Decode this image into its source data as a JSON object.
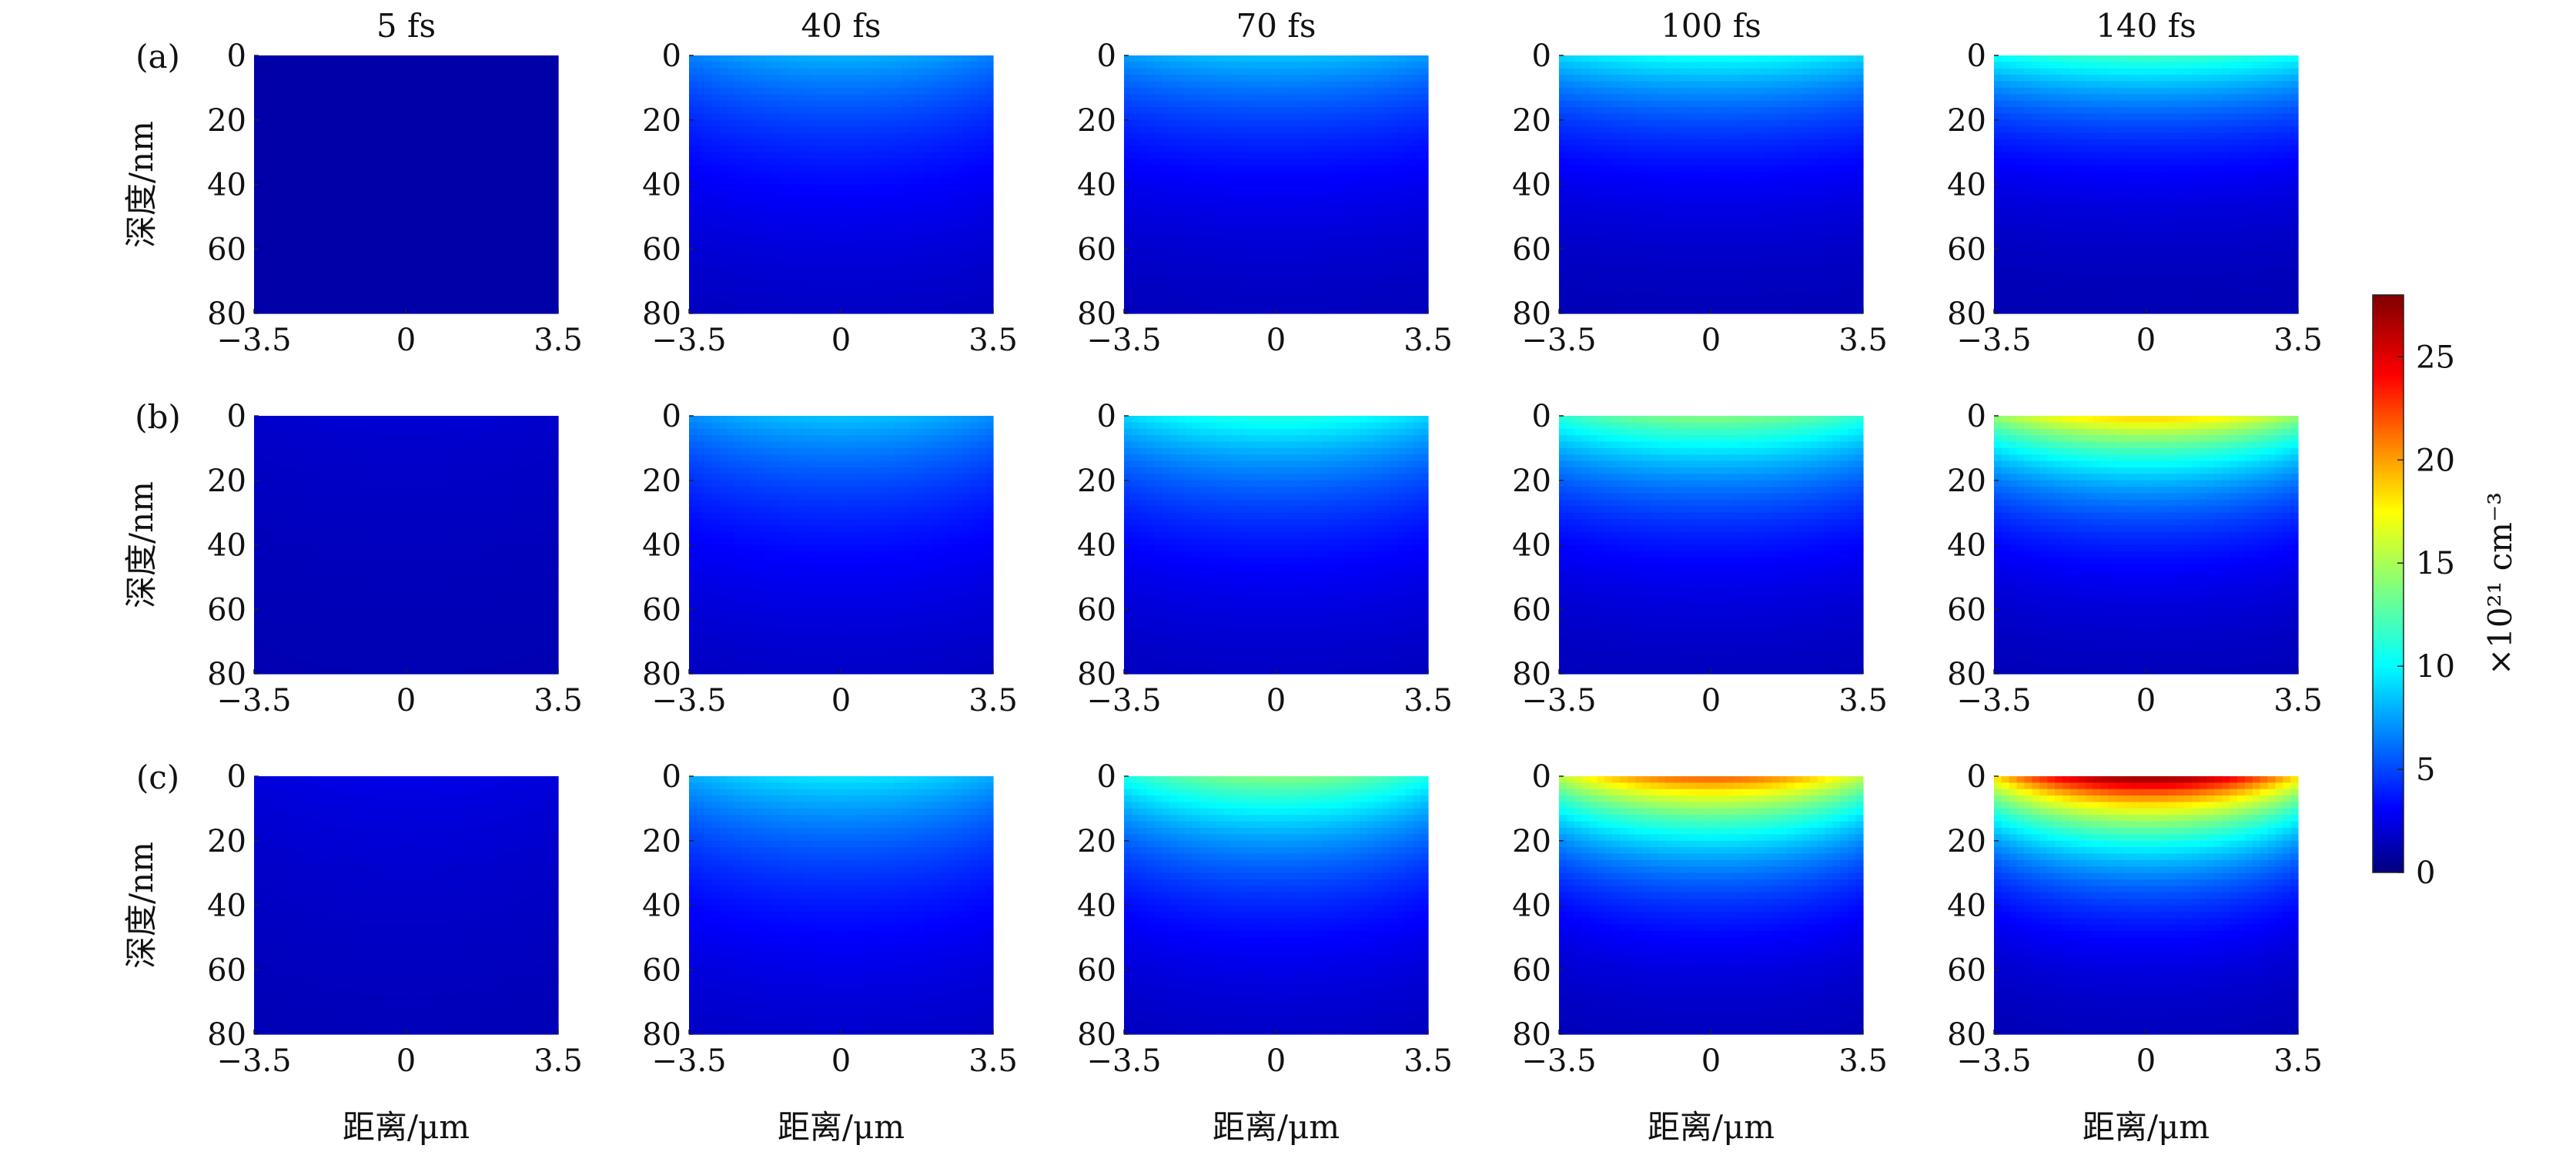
{
  "chart_data": {
    "type": "heatmap",
    "colormap": "jet",
    "col_titles": [
      "5 fs",
      "40 fs",
      "70 fs",
      "100 fs",
      "140 fs"
    ],
    "row_labels": [
      "(a)",
      "(b)",
      "(c)"
    ],
    "xlabel": "距离/μm",
    "ylabel": "深度/nm",
    "x_ticks": [
      "−3.5",
      "0",
      "3.5"
    ],
    "y_ticks": [
      "0",
      "20",
      "40",
      "60",
      "80"
    ],
    "xlim": [
      -3.5,
      3.5
    ],
    "ylim": [
      80,
      0
    ],
    "colorbar": {
      "label": "×10²¹ cm⁻³",
      "ticks": [
        "0",
        "5",
        "10",
        "15",
        "20",
        "25"
      ],
      "range": [
        0,
        28
      ]
    },
    "panels": [
      {
        "row": "(a)",
        "time": "5 fs",
        "surface_center": 1.0,
        "depth_scale_nm": 60,
        "edge_ratio": 0.97
      },
      {
        "row": "(a)",
        "time": "40 fs",
        "surface_center": 8.0,
        "depth_scale_nm": 35,
        "edge_ratio": 0.8
      },
      {
        "row": "(a)",
        "time": "70 fs",
        "surface_center": 8.5,
        "depth_scale_nm": 30,
        "edge_ratio": 0.85
      },
      {
        "row": "(a)",
        "time": "100 fs",
        "surface_center": 10.5,
        "depth_scale_nm": 25,
        "edge_ratio": 0.85
      },
      {
        "row": "(a)",
        "time": "140 fs",
        "surface_center": 12.0,
        "depth_scale_nm": 22,
        "edge_ratio": 0.85
      },
      {
        "row": "(b)",
        "time": "5 fs",
        "surface_center": 2.0,
        "depth_scale_nm": 60,
        "edge_ratio": 0.85
      },
      {
        "row": "(b)",
        "time": "40 fs",
        "surface_center": 8.5,
        "depth_scale_nm": 35,
        "edge_ratio": 0.8
      },
      {
        "row": "(b)",
        "time": "70 fs",
        "surface_center": 11.0,
        "depth_scale_nm": 30,
        "edge_ratio": 0.8
      },
      {
        "row": "(b)",
        "time": "100 fs",
        "surface_center": 14.0,
        "depth_scale_nm": 25,
        "edge_ratio": 0.8
      },
      {
        "row": "(b)",
        "time": "140 fs",
        "surface_center": 19.0,
        "depth_scale_nm": 22,
        "edge_ratio": 0.75
      },
      {
        "row": "(c)",
        "time": "5 fs",
        "surface_center": 2.5,
        "depth_scale_nm": 60,
        "edge_ratio": 0.8
      },
      {
        "row": "(c)",
        "time": "40 fs",
        "surface_center": 9.5,
        "depth_scale_nm": 35,
        "edge_ratio": 0.8
      },
      {
        "row": "(c)",
        "time": "70 fs",
        "surface_center": 14.0,
        "depth_scale_nm": 28,
        "edge_ratio": 0.75
      },
      {
        "row": "(c)",
        "time": "100 fs",
        "surface_center": 22.0,
        "depth_scale_nm": 22,
        "edge_ratio": 0.7
      },
      {
        "row": "(c)",
        "time": "140 fs",
        "surface_center": 28.0,
        "depth_scale_nm": 20,
        "edge_ratio": 0.65
      }
    ]
  }
}
